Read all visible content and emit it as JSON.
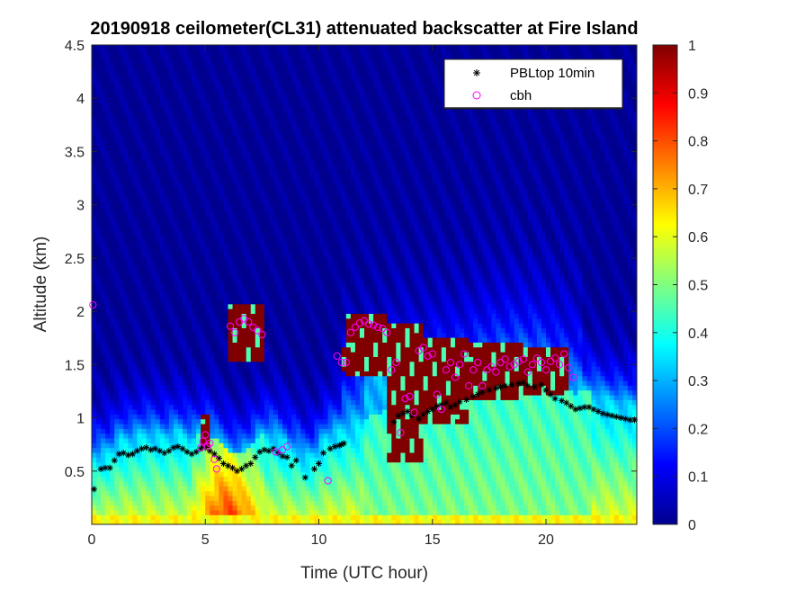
{
  "chart_data": {
    "type": "heatmap",
    "title": "20190918 ceilometer(CL31) attenuated backscatter at Fire Island",
    "xlabel": "Time (UTC hour)",
    "ylabel": "Altitude (km)",
    "xlim": [
      0,
      24
    ],
    "ylim": [
      0,
      4.5
    ],
    "xticks": [
      0,
      5,
      10,
      15,
      20
    ],
    "yticks": [
      0.5,
      1,
      1.5,
      2,
      2.5,
      3,
      3.5,
      4,
      4.5
    ],
    "colorbar": {
      "range": [
        0,
        1
      ],
      "ticks": [
        0,
        0.1,
        0.2,
        0.3,
        0.4,
        0.5,
        0.6,
        0.7,
        0.8,
        0.9,
        1
      ],
      "colormap": "jet",
      "colors": [
        "#00008f",
        "#0000ff",
        "#0080ff",
        "#00ffff",
        "#80ff80",
        "#ffff00",
        "#ff8000",
        "#ff0000",
        "#800000"
      ]
    },
    "legend": {
      "placement": "top-right",
      "entries": [
        {
          "label": "PBLtop 10min",
          "marker": "asterisk",
          "color": "#000000"
        },
        {
          "label": "cbh",
          "marker": "circle",
          "color": "#ff00ff"
        }
      ]
    },
    "grid": false,
    "series": [
      {
        "name": "PBLtop 10min",
        "marker": "asterisk",
        "color": "#000000",
        "x": [
          0.1,
          0.4,
          0.6,
          0.8,
          1.0,
          1.2,
          1.4,
          1.6,
          1.8,
          2.0,
          2.2,
          2.4,
          2.6,
          2.8,
          3.0,
          3.2,
          3.4,
          3.6,
          3.8,
          4.0,
          4.2,
          4.4,
          4.6,
          4.8,
          5.0,
          5.2,
          5.4,
          5.6,
          5.8,
          6.0,
          6.2,
          6.4,
          6.6,
          6.8,
          7.0,
          7.2,
          7.4,
          7.6,
          7.8,
          8.0,
          8.2,
          8.4,
          8.6,
          8.8,
          9.0,
          9.4,
          9.8,
          10.0,
          10.2,
          10.5,
          10.7,
          10.9,
          11.0,
          11.1,
          13.3,
          13.5,
          13.7,
          13.9,
          14.1,
          14.4,
          14.6,
          14.8,
          15.0,
          15.2,
          15.4,
          15.6,
          15.8,
          16.0,
          16.2,
          16.5,
          16.8,
          17.0,
          17.2,
          17.5,
          17.8,
          18.0,
          18.2,
          18.5,
          18.8,
          19.0,
          19.2,
          19.5,
          19.8,
          20.0,
          20.2,
          20.4,
          20.7,
          20.9,
          21.1,
          21.3,
          21.5,
          21.7,
          21.9,
          22.1,
          22.3,
          22.5,
          22.7,
          22.9,
          23.1,
          23.3,
          23.5,
          23.7,
          23.9
        ],
        "y": [
          0.33,
          0.52,
          0.53,
          0.53,
          0.6,
          0.66,
          0.67,
          0.65,
          0.66,
          0.69,
          0.71,
          0.72,
          0.7,
          0.71,
          0.69,
          0.67,
          0.69,
          0.72,
          0.73,
          0.71,
          0.68,
          0.66,
          0.68,
          0.71,
          0.72,
          0.69,
          0.66,
          0.62,
          0.57,
          0.55,
          0.53,
          0.5,
          0.52,
          0.55,
          0.57,
          0.63,
          0.68,
          0.7,
          0.69,
          0.71,
          0.67,
          0.64,
          0.63,
          0.55,
          0.6,
          0.44,
          0.52,
          0.57,
          0.67,
          0.71,
          0.73,
          0.74,
          0.75,
          0.76,
          0.96,
          1.02,
          1.04,
          1.06,
          1.02,
          0.99,
          1.03,
          1.06,
          1.08,
          1.11,
          1.12,
          1.14,
          1.1,
          1.12,
          1.15,
          1.17,
          1.2,
          1.22,
          1.24,
          1.26,
          1.28,
          1.29,
          1.3,
          1.31,
          1.32,
          1.33,
          1.3,
          1.29,
          1.31,
          1.26,
          1.22,
          1.18,
          1.16,
          1.14,
          1.11,
          1.08,
          1.09,
          1.1,
          1.1,
          1.08,
          1.06,
          1.04,
          1.03,
          1.02,
          1.01,
          1.0,
          0.99,
          0.98,
          0.98
        ]
      },
      {
        "name": "cbh",
        "marker": "circle",
        "color": "#ff00ff",
        "x": [
          0.05,
          4.8,
          4.9,
          5.0,
          5.1,
          5.2,
          5.4,
          5.5,
          6.1,
          6.3,
          6.5,
          6.7,
          6.9,
          7.1,
          7.3,
          7.5,
          8.1,
          8.4,
          8.6,
          10.4,
          10.8,
          11.0,
          11.2,
          11.4,
          11.6,
          11.8,
          12.0,
          12.2,
          12.4,
          12.6,
          12.8,
          13.0,
          13.2,
          13.4,
          13.6,
          13.8,
          14.0,
          14.2,
          14.4,
          14.6,
          14.8,
          15.0,
          15.2,
          15.4,
          15.6,
          15.8,
          16.0,
          16.2,
          16.4,
          16.6,
          16.8,
          17.0,
          17.2,
          17.4,
          17.6,
          17.8,
          18.0,
          18.2,
          18.4,
          18.6,
          18.8,
          19.0,
          19.2,
          19.4,
          19.6,
          19.8,
          20.0,
          20.2,
          20.4,
          20.6,
          20.8,
          21.0,
          21.2
        ],
        "y": [
          2.06,
          0.72,
          0.78,
          0.84,
          0.73,
          0.76,
          0.61,
          0.52,
          1.86,
          1.8,
          1.9,
          1.93,
          1.9,
          1.85,
          1.82,
          1.78,
          0.68,
          0.7,
          0.73,
          0.41,
          1.58,
          1.52,
          1.52,
          1.8,
          1.85,
          1.89,
          1.91,
          1.88,
          1.87,
          1.85,
          1.84,
          1.8,
          1.45,
          1.52,
          0.86,
          1.18,
          1.2,
          1.05,
          1.63,
          1.66,
          1.58,
          1.6,
          1.22,
          1.08,
          1.45,
          1.52,
          1.38,
          1.5,
          1.6,
          1.3,
          1.45,
          1.52,
          1.3,
          1.45,
          1.48,
          1.43,
          1.52,
          1.55,
          1.48,
          1.5,
          1.53,
          1.55,
          1.43,
          1.5,
          1.56,
          1.52,
          1.45,
          1.53,
          1.56,
          1.5,
          1.6,
          1.47,
          1.38
        ]
      }
    ]
  }
}
